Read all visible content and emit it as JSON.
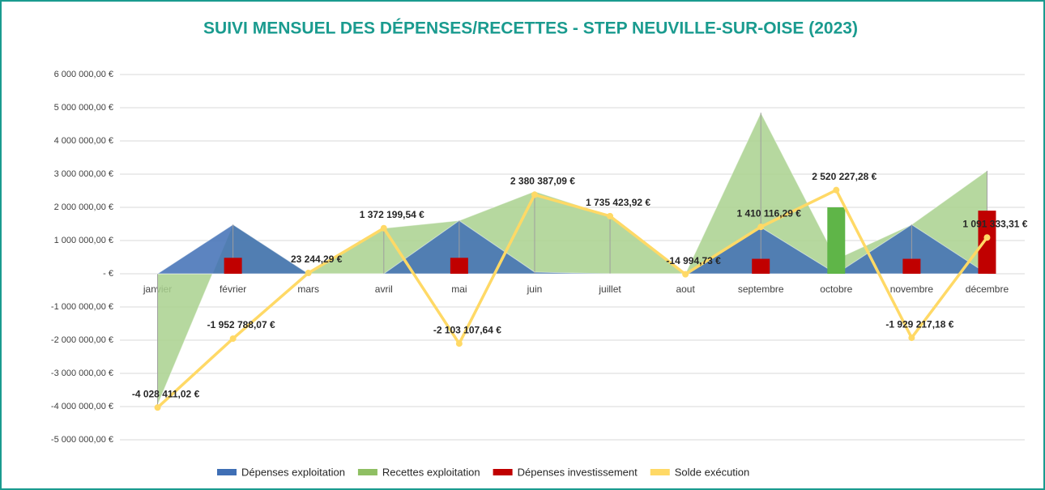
{
  "chart_data": {
    "type": "combo",
    "title": "SUIVI MENSUEL DES DÉPENSES/RECETTES - STEP NEUVILLE-SUR-OISE (2023)",
    "categories": [
      "janvier",
      "février",
      "mars",
      "avril",
      "mai",
      "juin",
      "juillet",
      "aout",
      "septembre",
      "octobre",
      "novembre",
      "décembre"
    ],
    "ylim": [
      -5000000,
      6000000
    ],
    "yticks": [
      {
        "value": 6000000,
        "label": "6 000 000,00 €"
      },
      {
        "value": 5000000,
        "label": "5 000 000,00 €"
      },
      {
        "value": 4000000,
        "label": "4 000 000,00 €"
      },
      {
        "value": 3000000,
        "label": "3 000 000,00 €"
      },
      {
        "value": 2000000,
        "label": "2 000 000,00 €"
      },
      {
        "value": 1000000,
        "label": "1 000 000,00 €"
      },
      {
        "value": 0,
        "label": "-   €"
      },
      {
        "value": -1000000,
        "label": "-1 000 000,00 €"
      },
      {
        "value": -2000000,
        "label": "-2 000 000,00 €"
      },
      {
        "value": -3000000,
        "label": "-3 000 000,00 €"
      },
      {
        "value": -4000000,
        "label": "-4 000 000,00 €"
      },
      {
        "value": -5000000,
        "label": "-5 000 000,00 €"
      }
    ],
    "grid": true,
    "legend": "bottom",
    "series": [
      {
        "name": "Recettes exploitation",
        "type": "area",
        "color": "#a9d18e",
        "values": [
          -3950000,
          1480000,
          0,
          1370000,
          1600000,
          2480000,
          1750000,
          0,
          4850000,
          440000,
          1480000,
          3100000
        ]
      },
      {
        "name": "Dépenses exploitation",
        "type": "area",
        "color": "#3f6fb5",
        "values": [
          0,
          1480000,
          0,
          0,
          1600000,
          50000,
          0,
          0,
          1400000,
          0,
          1480000,
          0
        ]
      },
      {
        "name": "Dépenses investissement",
        "type": "bar",
        "color": "#c00000",
        "values": [
          0,
          480000,
          0,
          0,
          480000,
          0,
          0,
          0,
          450000,
          0,
          450000,
          1900000
        ]
      },
      {
        "type": "bar",
        "color": "#5fb548",
        "values": [
          0,
          0,
          0,
          0,
          0,
          0,
          0,
          0,
          0,
          2000000,
          0,
          0
        ]
      },
      {
        "name": "Solde exécution",
        "type": "line",
        "color": "#ffd966",
        "values": [
          -4028411.02,
          -1952788.07,
          23244.29,
          1372199.54,
          -2103107.64,
          2380387.09,
          1735423.92,
          -14994.73,
          1410116.29,
          2520227.28,
          -1929217.18,
          1091333.31
        ],
        "value_labels": [
          "-4 028 411,02 €",
          "-1 952 788,07 €",
          "23 244,29 €",
          "1 372 199,54 €",
          "-2 103 107,64 €",
          "2 380 387,09 €",
          "1 735 423,92 €",
          "-14 994,73 €",
          "1 410 116,29 €",
          "2 520 227,28 €",
          "-1 929 217,18 €",
          "1 091 333,31 €"
        ]
      }
    ]
  }
}
